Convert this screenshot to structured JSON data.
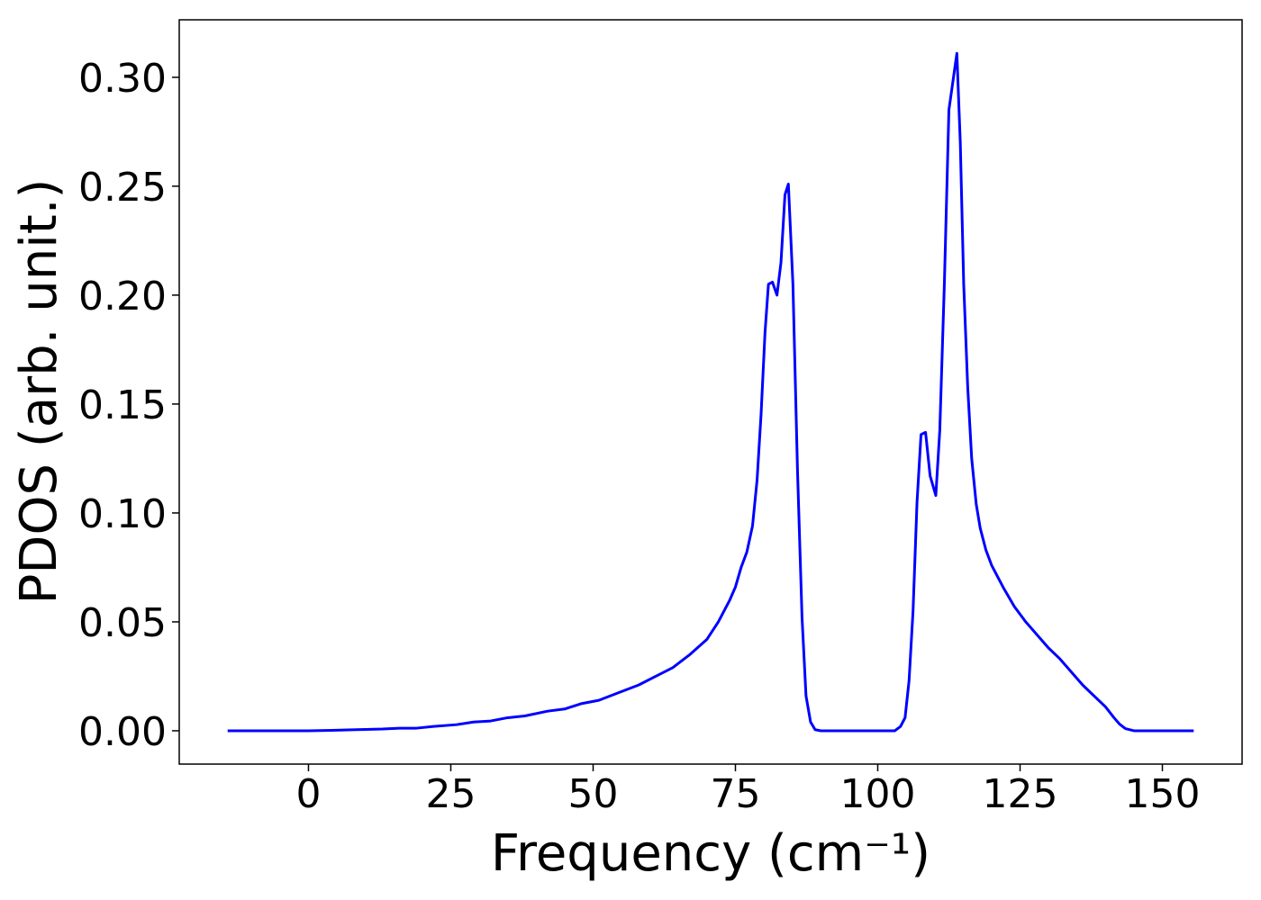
{
  "chart_data": {
    "type": "line",
    "xlabel": "Frequency (cm⁻¹)",
    "ylabel": "PDOS (arb. unit.)",
    "xlim": [
      -22.7,
      164.0
    ],
    "ylim": [
      -0.0153,
      0.3264
    ],
    "xticks": [
      0,
      25,
      50,
      75,
      100,
      125,
      150
    ],
    "yticks": [
      {
        "value": 0,
        "label": "0.00"
      },
      {
        "value": 0.05,
        "label": "0.05"
      },
      {
        "value": 0.1,
        "label": "0.10"
      },
      {
        "value": 0.15,
        "label": "0.15"
      },
      {
        "value": 0.2,
        "label": "0.20"
      },
      {
        "value": 0.25,
        "label": "0.25"
      },
      {
        "value": 0.3,
        "label": "0.30"
      }
    ],
    "grid": false,
    "series": [
      {
        "color": "#0000ff",
        "x": [
          -14.2,
          0,
          4,
          10,
          13,
          16,
          19,
          22,
          26,
          29,
          32,
          35,
          38,
          42,
          45,
          48,
          51,
          55,
          58,
          61,
          64,
          67,
          70,
          72,
          74,
          75,
          76,
          77,
          78,
          78.8,
          79.5,
          80.2,
          80.8,
          81.5,
          82.3,
          83,
          83.7,
          84.3,
          85.1,
          85.9,
          86.7,
          87.4,
          88.2,
          89,
          90,
          103,
          104,
          104.8,
          105.5,
          106.2,
          106.9,
          107.6,
          108.4,
          109.2,
          110.2,
          110.9,
          111.7,
          112.5,
          113.9,
          114.5,
          115.1,
          115.8,
          116.5,
          117.3,
          118,
          119,
          120,
          122,
          124,
          126,
          128,
          130,
          132,
          134,
          136,
          138,
          140,
          141.5,
          142.5,
          143.5,
          145,
          155.5
        ],
        "values": [
          0,
          0,
          0.0002,
          0.0006,
          0.0008,
          0.0012,
          0.0012,
          0.002,
          0.0028,
          0.004,
          0.0045,
          0.006,
          0.0068,
          0.009,
          0.01,
          0.0125,
          0.014,
          0.018,
          0.021,
          0.025,
          0.029,
          0.035,
          0.042,
          0.05,
          0.06,
          0.066,
          0.075,
          0.082,
          0.094,
          0.115,
          0.145,
          0.183,
          0.205,
          0.206,
          0.2,
          0.215,
          0.246,
          0.251,
          0.205,
          0.12,
          0.052,
          0.016,
          0.004,
          0.0005,
          0,
          0,
          0.002,
          0.006,
          0.023,
          0.055,
          0.105,
          0.136,
          0.137,
          0.117,
          0.108,
          0.138,
          0.205,
          0.285,
          0.311,
          0.27,
          0.205,
          0.158,
          0.125,
          0.104,
          0.093,
          0.083,
          0.076,
          0.066,
          0.057,
          0.05,
          0.044,
          0.038,
          0.033,
          0.027,
          0.021,
          0.016,
          0.011,
          0.006,
          0.003,
          0.001,
          0,
          0
        ]
      }
    ]
  }
}
